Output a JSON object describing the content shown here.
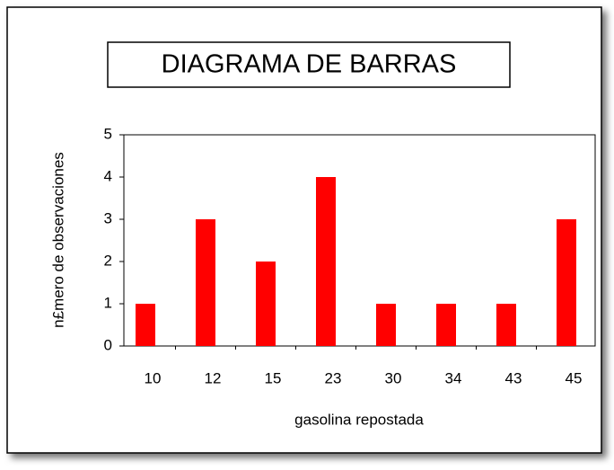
{
  "chart_data": {
    "type": "bar",
    "title": "DIAGRAMA DE BARRAS",
    "x_label": "gasolina repostada",
    "y_label": "n£mero de observaciones",
    "categories": [
      "10",
      "12",
      "15",
      "23",
      "30",
      "34",
      "43",
      "45"
    ],
    "values": [
      1,
      3,
      2,
      4,
      1,
      1,
      1,
      3
    ],
    "color": "#ff0000",
    "ylim": [
      0,
      5
    ],
    "yticks": [
      0,
      1,
      2,
      3,
      4,
      5
    ],
    "grid": false
  }
}
